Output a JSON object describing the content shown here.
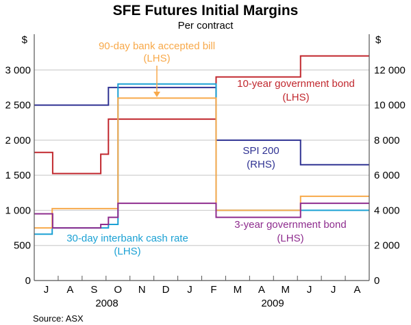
{
  "chart_data": {
    "type": "line",
    "step": true,
    "title": "SFE Futures Initial Margins",
    "subtitle": "Per contract",
    "left_unit": "$",
    "right_unit": "$",
    "source": "Source: ASX",
    "ylim_left": [
      0,
      3500
    ],
    "ylim_right": [
      0,
      14000
    ],
    "left_ticks": [
      "0",
      "500",
      "1 000",
      "1 500",
      "2 000",
      "2 500",
      "3 000"
    ],
    "right_ticks": [
      "0",
      "2 000",
      "4 000",
      "6 000",
      "8 000",
      "10 000",
      "12 000"
    ],
    "x_unit": "months since 1 Jul 2008",
    "xlim": [
      0,
      14
    ],
    "month_labels": [
      "J",
      "A",
      "S",
      "O",
      "N",
      "D",
      "J",
      "F",
      "M",
      "A",
      "M",
      "J",
      "J",
      "A"
    ],
    "year_labels": [
      "2008",
      "2009"
    ],
    "grid": true,
    "series": [
      {
        "name": "10-year government bond",
        "axis": "LHS",
        "color": "#c1272d",
        "steps": [
          [
            0,
            1825
          ],
          [
            0.77,
            1525
          ],
          [
            2.78,
            1800
          ],
          [
            3.1,
            2300
          ],
          [
            7.6,
            2900
          ],
          [
            11.13,
            3200
          ]
        ]
      },
      {
        "name": "SPI 200",
        "axis": "RHS",
        "color": "#2e3192",
        "steps": [
          [
            0,
            10000
          ],
          [
            3.1,
            11000
          ],
          [
            7.6,
            8000
          ],
          [
            11.13,
            6600
          ]
        ]
      },
      {
        "name": "30-day interbank cash rate",
        "axis": "LHS",
        "color": "#1ba1d4",
        "steps": [
          [
            0,
            660
          ],
          [
            0.75,
            750
          ],
          [
            3.1,
            800
          ],
          [
            3.5,
            2800
          ],
          [
            7.6,
            1000
          ]
        ]
      },
      {
        "name": "90-day bank accepted bill",
        "axis": "LHS",
        "color": "#f8a94a",
        "steps": [
          [
            0,
            750
          ],
          [
            0.75,
            1025
          ],
          [
            3.5,
            2600
          ],
          [
            7.6,
            1000
          ],
          [
            11.13,
            1200
          ]
        ]
      },
      {
        "name": "3-year government bond",
        "axis": "LHS",
        "color": "#8e2c8e",
        "steps": [
          [
            0,
            950
          ],
          [
            0.77,
            750
          ],
          [
            2.78,
            800
          ],
          [
            3.1,
            900
          ],
          [
            3.5,
            1100
          ],
          [
            7.6,
            900
          ],
          [
            11.13,
            1100
          ]
        ]
      }
    ],
    "annotations": [
      {
        "text": "90-day bank accepted bill",
        "sub": "(LHS)",
        "color": "#f8a94a"
      },
      {
        "text": "10-year government bond",
        "sub": "(LHS)",
        "color": "#c1272d"
      },
      {
        "text": "SPI 200",
        "sub": "(RHS)",
        "color": "#2e3192"
      },
      {
        "text": "30-day interbank cash rate",
        "sub": "(LHS)",
        "color": "#1ba1d4"
      },
      {
        "text": "3-year government bond",
        "sub": "(LHS)",
        "color": "#8e2c8e"
      }
    ]
  }
}
